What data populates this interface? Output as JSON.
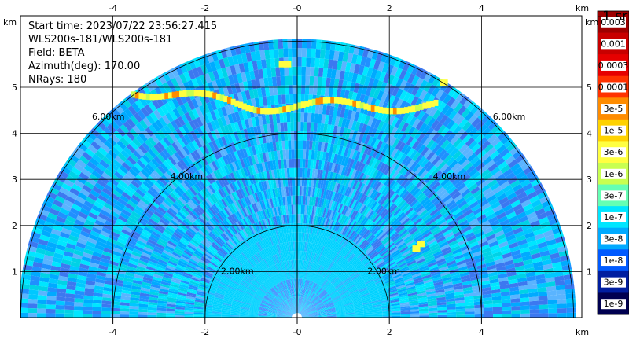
{
  "header": {
    "start_time": "Start time: 2023/07/22 23:56:27.415",
    "instrument": "WLS200s-181/WLS200s-181",
    "field": "Field: BETA",
    "azimuth": "Azimuth(deg): 170.00",
    "nrays": "NRays: 180"
  },
  "chart_data": {
    "type": "heatmap",
    "title": "",
    "plot_kind": "RHI polar sweep (half disc)",
    "xlabel": "km",
    "ylabel": "km",
    "x_unit": "km",
    "y_unit": "km",
    "xlim": [
      -6.0,
      6.0
    ],
    "ylim": [
      0.0,
      5.8
    ],
    "x_ticks": [
      -4,
      -2,
      0,
      2,
      4
    ],
    "x_tick_labels": [
      "-4",
      "-2",
      "-0",
      "2",
      "4"
    ],
    "y_ticks": [
      1,
      2,
      3,
      4,
      5
    ],
    "y_tick_labels": [
      "1",
      "2",
      "3",
      "4",
      "5"
    ],
    "max_range_km": 6.0,
    "range_rings_km": [
      2,
      4,
      6
    ],
    "range_ring_labels": [
      "2.00km",
      "4.00km",
      "6.00km"
    ],
    "grid": true,
    "colorbar": {
      "label": "-1 sr",
      "scale": "log",
      "tick_labels": [
        "0.003",
        "0.001",
        "0.0003",
        "0.0001",
        "3e-5",
        "1e-5",
        "3e-6",
        "1e-6",
        "3e-7",
        "1e-7",
        "3e-8",
        "1e-8",
        "3e-9",
        "1e-9"
      ],
      "colors": [
        "#9e0000",
        "#c80000",
        "#e60000",
        "#ff3200",
        "#ff8c00",
        "#ffd200",
        "#ffff40",
        "#c8ff50",
        "#64ffb4",
        "#00e6ff",
        "#00aaff",
        "#005aff",
        "#001ea0",
        "#000050"
      ]
    },
    "features": [
      {
        "name": "elevated layer",
        "height_km": 4.6,
        "x_from_km": -3.6,
        "x_to_km": 3.0,
        "level": "1e-5 to 3e-6"
      },
      {
        "name": "near-field zone",
        "range_km": 2.0,
        "level": "1e-7"
      }
    ]
  }
}
